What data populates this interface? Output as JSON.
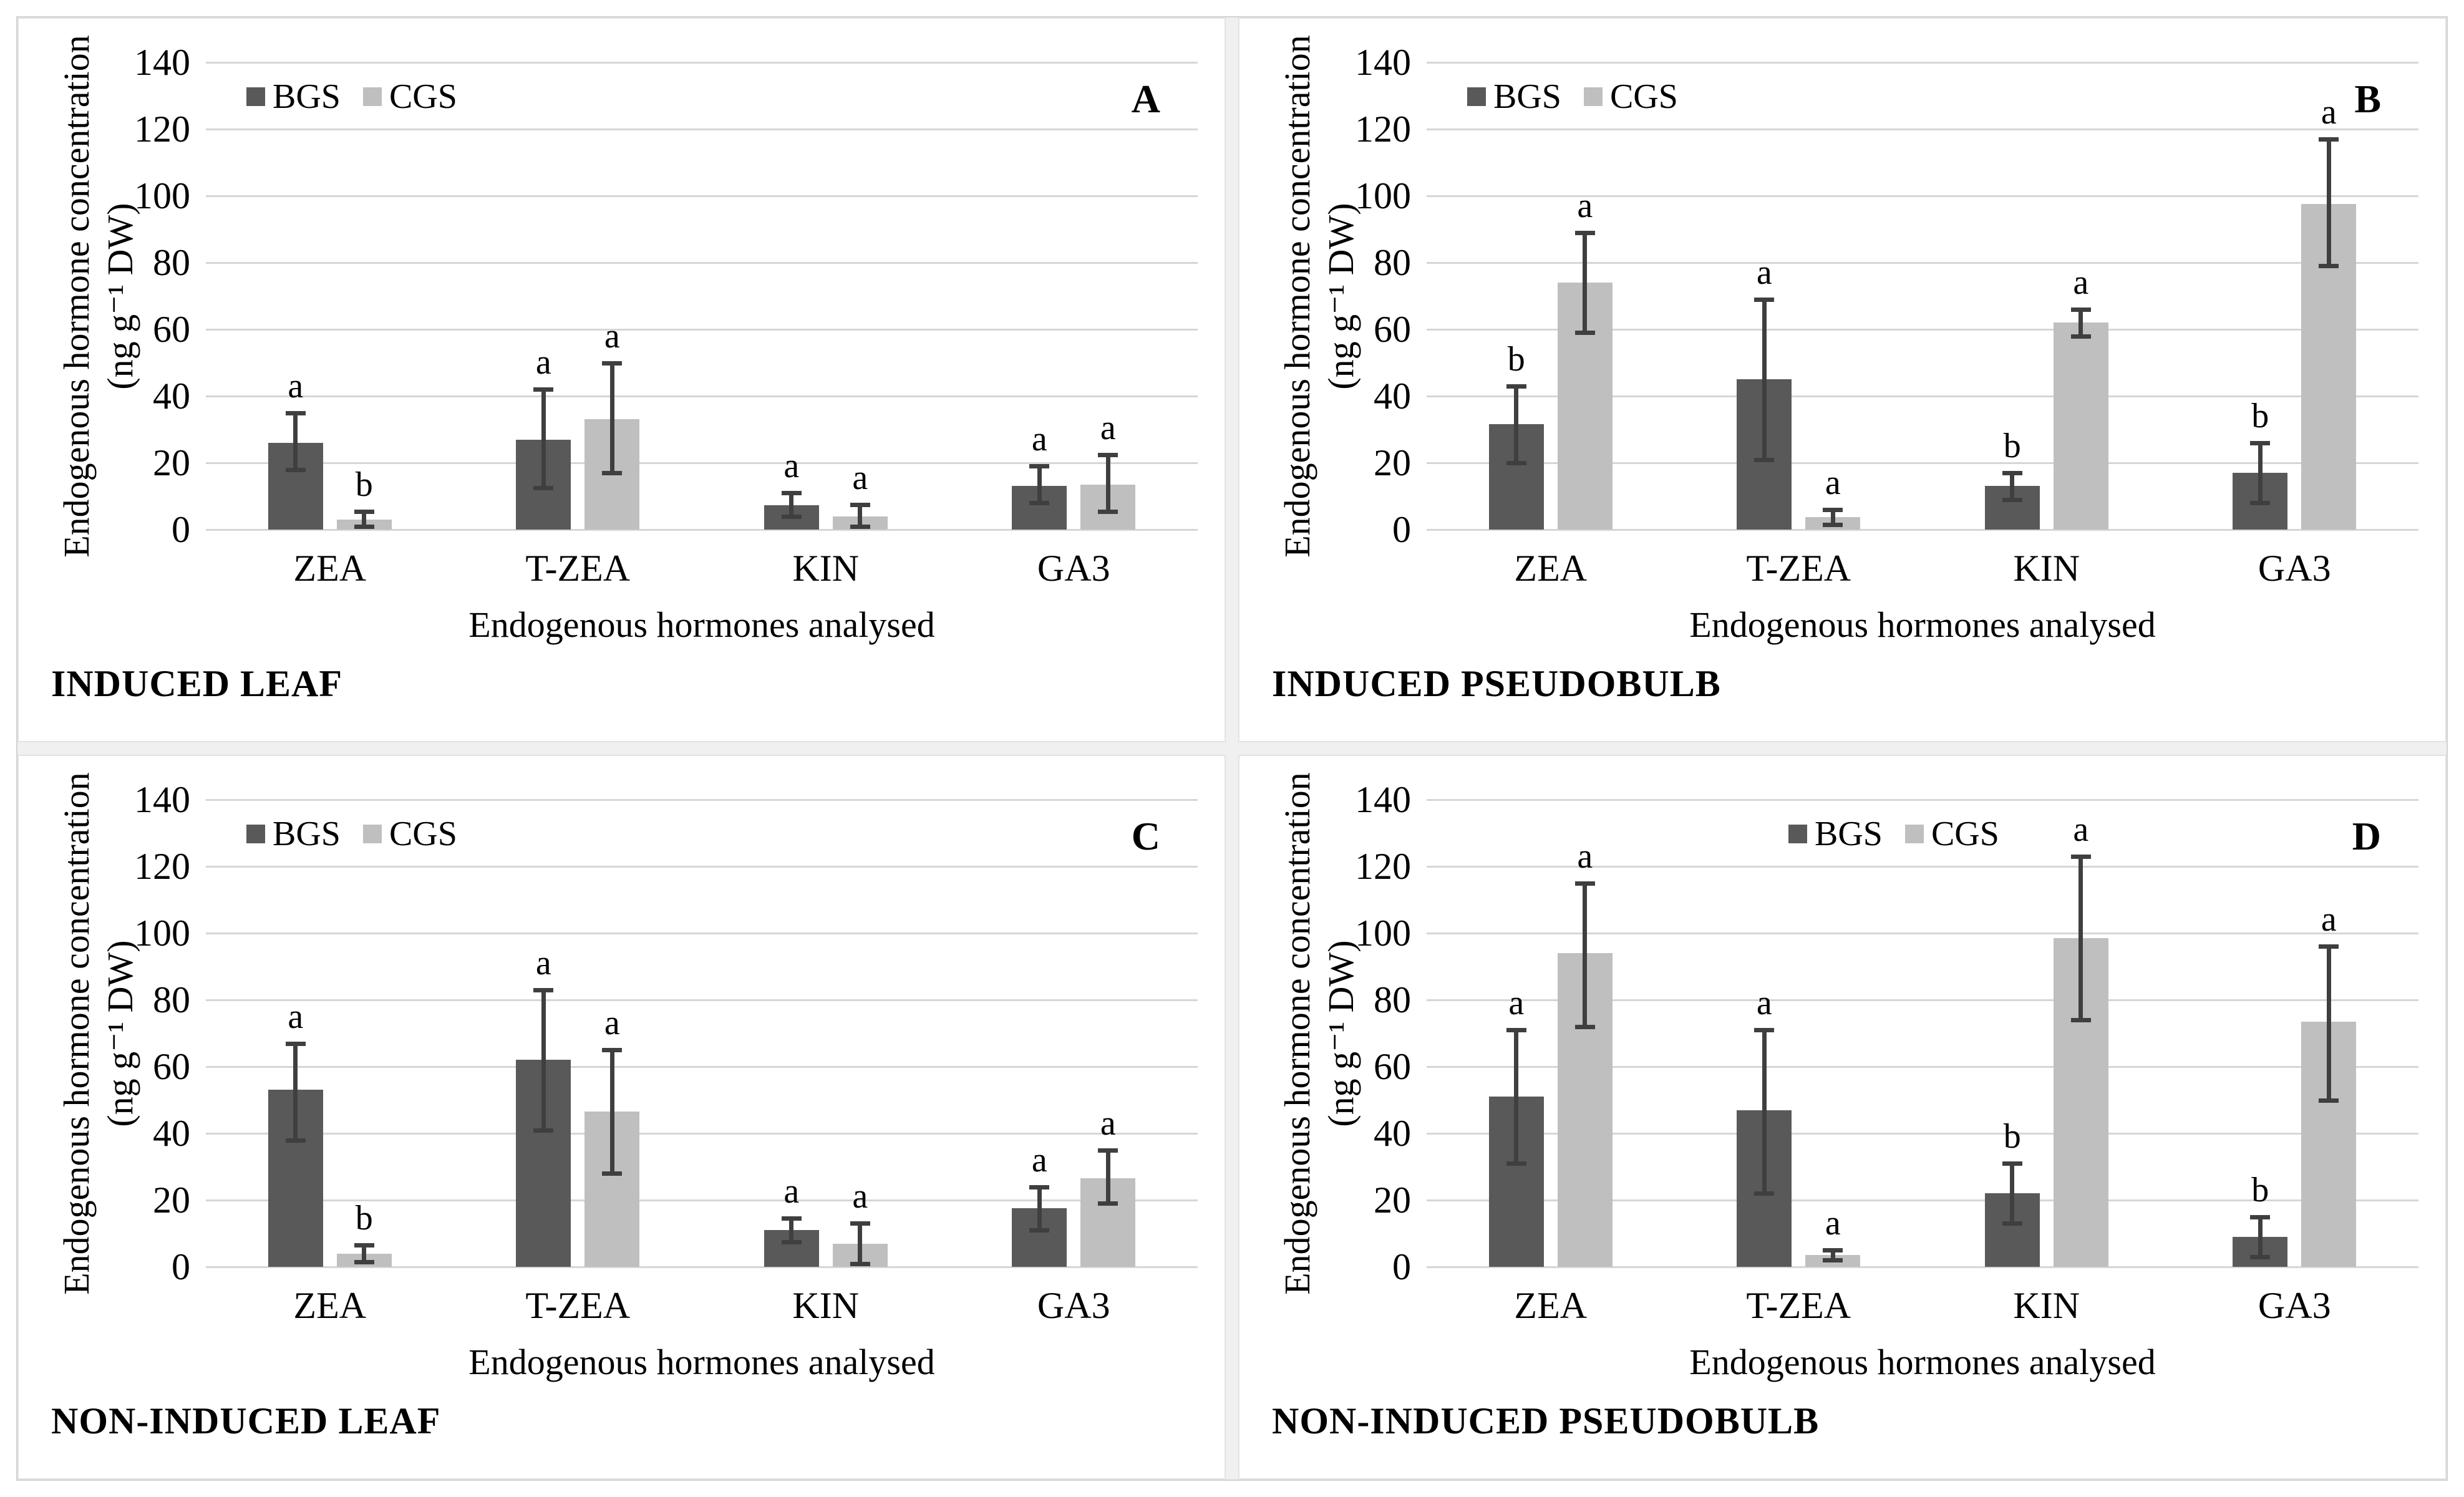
{
  "figure": {
    "legend": {
      "series": [
        {
          "name": "BGS",
          "color": "#595959"
        },
        {
          "name": "CGS",
          "color": "#bfbfbf"
        }
      ]
    },
    "gridline_color": "#d6d6d6",
    "error_bar_color": "#3f3f3f"
  },
  "chart_data": [
    {
      "type": "bar",
      "panel_letter": "A",
      "title": "INDUCED LEAF",
      "legend_position": "left",
      "xlabel": "Endogenous hormones analysed",
      "ylabel_line1": "Endogenous hormone concentration",
      "ylabel_line2": "(ng g⁻¹ DW)",
      "ylim": [
        0,
        140
      ],
      "yticks": [
        0,
        20,
        40,
        60,
        80,
        100,
        120,
        140
      ],
      "categories": [
        "ZEA",
        "T-ZEA",
        "KIN",
        "GA3"
      ],
      "series": [
        {
          "name": "BGS",
          "values": [
            26,
            27,
            7.3,
            13
          ],
          "err_low": [
            18,
            12.5,
            4,
            8
          ],
          "err_high": [
            35,
            42,
            11,
            19
          ],
          "letters": [
            "a",
            "a",
            "a",
            "a"
          ]
        },
        {
          "name": "CGS",
          "values": [
            3,
            33,
            4,
            13.5
          ],
          "err_low": [
            1,
            17,
            1,
            5.5
          ],
          "err_high": [
            5.5,
            50,
            7.5,
            22.5
          ],
          "letters": [
            "b",
            "a",
            "a",
            "a"
          ]
        }
      ]
    },
    {
      "type": "bar",
      "panel_letter": "B",
      "title": "INDUCED PSEUDOBULB",
      "legend_position": "left",
      "xlabel": "Endogenous hormones analysed",
      "ylabel_line1": "Endogenous hormone concentration",
      "ylabel_line2": "(ng g⁻¹ DW)",
      "ylim": [
        0,
        140
      ],
      "yticks": [
        0,
        20,
        40,
        60,
        80,
        100,
        120,
        140
      ],
      "categories": [
        "ZEA",
        "T-ZEA",
        "KIN",
        "GA3"
      ],
      "series": [
        {
          "name": "BGS",
          "values": [
            31.5,
            45,
            13,
            17
          ],
          "err_low": [
            20,
            21,
            9,
            8
          ],
          "err_high": [
            43,
            69,
            17,
            26
          ],
          "letters": [
            "b",
            "a",
            "b",
            "b"
          ]
        },
        {
          "name": "CGS",
          "values": [
            74,
            3.8,
            62,
            97.5
          ],
          "err_low": [
            59,
            1.5,
            58,
            79
          ],
          "err_high": [
            89,
            6,
            66,
            117
          ],
          "letters": [
            "a",
            "a",
            "a",
            "a"
          ]
        }
      ]
    },
    {
      "type": "bar",
      "panel_letter": "C",
      "title": "NON-INDUCED LEAF",
      "legend_position": "left",
      "xlabel": "Endogenous hormones analysed",
      "ylabel_line1": "Endogenous hormone concentration",
      "ylabel_line2": "(ng g⁻¹ DW)",
      "ylim": [
        0,
        140
      ],
      "yticks": [
        0,
        20,
        40,
        60,
        80,
        100,
        120,
        140
      ],
      "categories": [
        "ZEA",
        "T-ZEA",
        "KIN",
        "GA3"
      ],
      "series": [
        {
          "name": "BGS",
          "values": [
            53,
            62,
            11,
            17.5
          ],
          "err_low": [
            38,
            41,
            7.5,
            11
          ],
          "err_high": [
            67,
            83,
            14.5,
            24
          ],
          "letters": [
            "a",
            "a",
            "a",
            "a"
          ]
        },
        {
          "name": "CGS",
          "values": [
            4,
            46.5,
            7,
            26.5
          ],
          "err_low": [
            1.5,
            28,
            1,
            19
          ],
          "err_high": [
            6.5,
            65,
            13,
            35
          ],
          "letters": [
            "b",
            "a",
            "a",
            "a"
          ]
        }
      ]
    },
    {
      "type": "bar",
      "panel_letter": "D",
      "title": "NON-INDUCED PSEUDOBULB",
      "legend_position": "center",
      "xlabel": "Endogenous hormones analysed",
      "ylabel_line1": "Endogenous hormone concentration",
      "ylabel_line2": "(ng g⁻¹ DW)",
      "ylim": [
        0,
        140
      ],
      "yticks": [
        0,
        20,
        40,
        60,
        80,
        100,
        120,
        140
      ],
      "categories": [
        "ZEA",
        "T-ZEA",
        "KIN",
        "GA3"
      ],
      "series": [
        {
          "name": "BGS",
          "values": [
            51,
            47,
            22,
            9
          ],
          "err_low": [
            31,
            22,
            13,
            3
          ],
          "err_high": [
            71,
            71,
            31,
            15
          ],
          "letters": [
            "a",
            "a",
            "b",
            "b"
          ]
        },
        {
          "name": "CGS",
          "values": [
            94,
            3.5,
            98.5,
            73.5
          ],
          "err_low": [
            72,
            2,
            74,
            50
          ],
          "err_high": [
            115,
            5,
            123,
            96
          ],
          "letters": [
            "a",
            "a",
            "a",
            "a"
          ]
        }
      ]
    }
  ]
}
